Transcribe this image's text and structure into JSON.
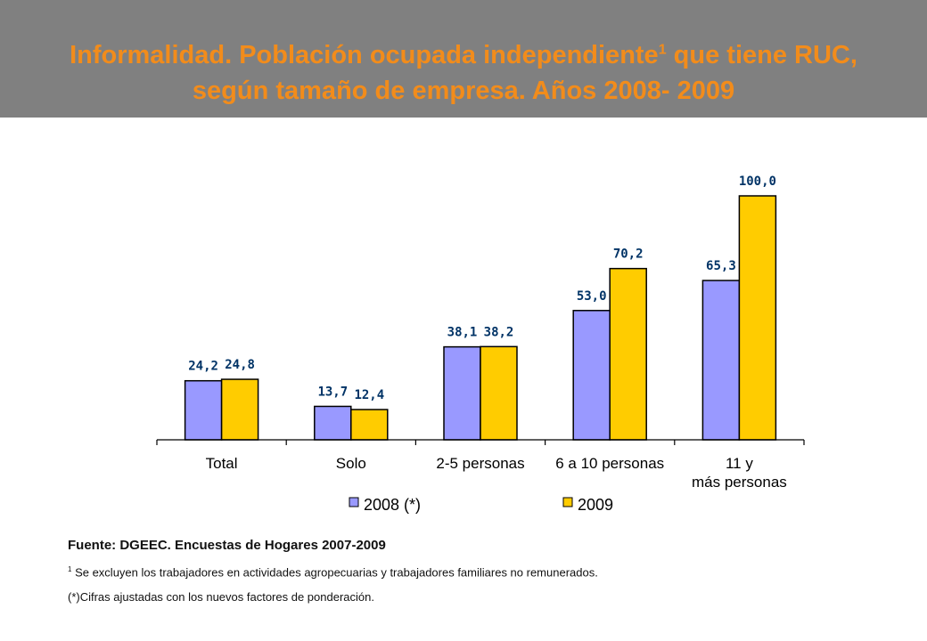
{
  "header": {
    "title_part1": "Informalidad. Población ocupada independiente",
    "title_sup": "1",
    "title_part2": " que tiene RUC,",
    "title_line2": "según tamaño de empresa. Años 2008- 2009"
  },
  "colors": {
    "header_bg": "#808080",
    "title": "#f28c1b",
    "series_2008": "#9999ff",
    "series_2009": "#ffcc00",
    "value_labels": "#003366"
  },
  "chart_data": {
    "type": "bar",
    "categories": [
      "Total",
      "Solo",
      "2-5 personas",
      "6 a 10 personas",
      "11 y más personas"
    ],
    "series": [
      {
        "name": "2008 (*)",
        "values": [
          24.2,
          13.7,
          38.1,
          53.0,
          65.3
        ],
        "labels": [
          "24,2",
          "13,7",
          "38,1",
          "53,0",
          "65,3"
        ],
        "color": "#9999ff"
      },
      {
        "name": "2009",
        "values": [
          24.8,
          12.4,
          38.2,
          70.2,
          100.0
        ],
        "labels": [
          "24,8",
          "12,4",
          "38,2",
          "70,2",
          "100,0"
        ],
        "color": "#ffcc00"
      }
    ],
    "ylim": [
      0,
      100
    ],
    "legend": "bottom",
    "grid": false
  },
  "notes": {
    "source": "Fuente: DGEEC. Encuestas de Hogares 2007-2009",
    "footnote_marker": "1",
    "footnote": " Se excluyen los trabajadores en actividades agropecuarias y trabajadores familiares no remunerados.",
    "adjusted": "(*)Cifras ajustadas con los nuevos factores de ponderación."
  }
}
